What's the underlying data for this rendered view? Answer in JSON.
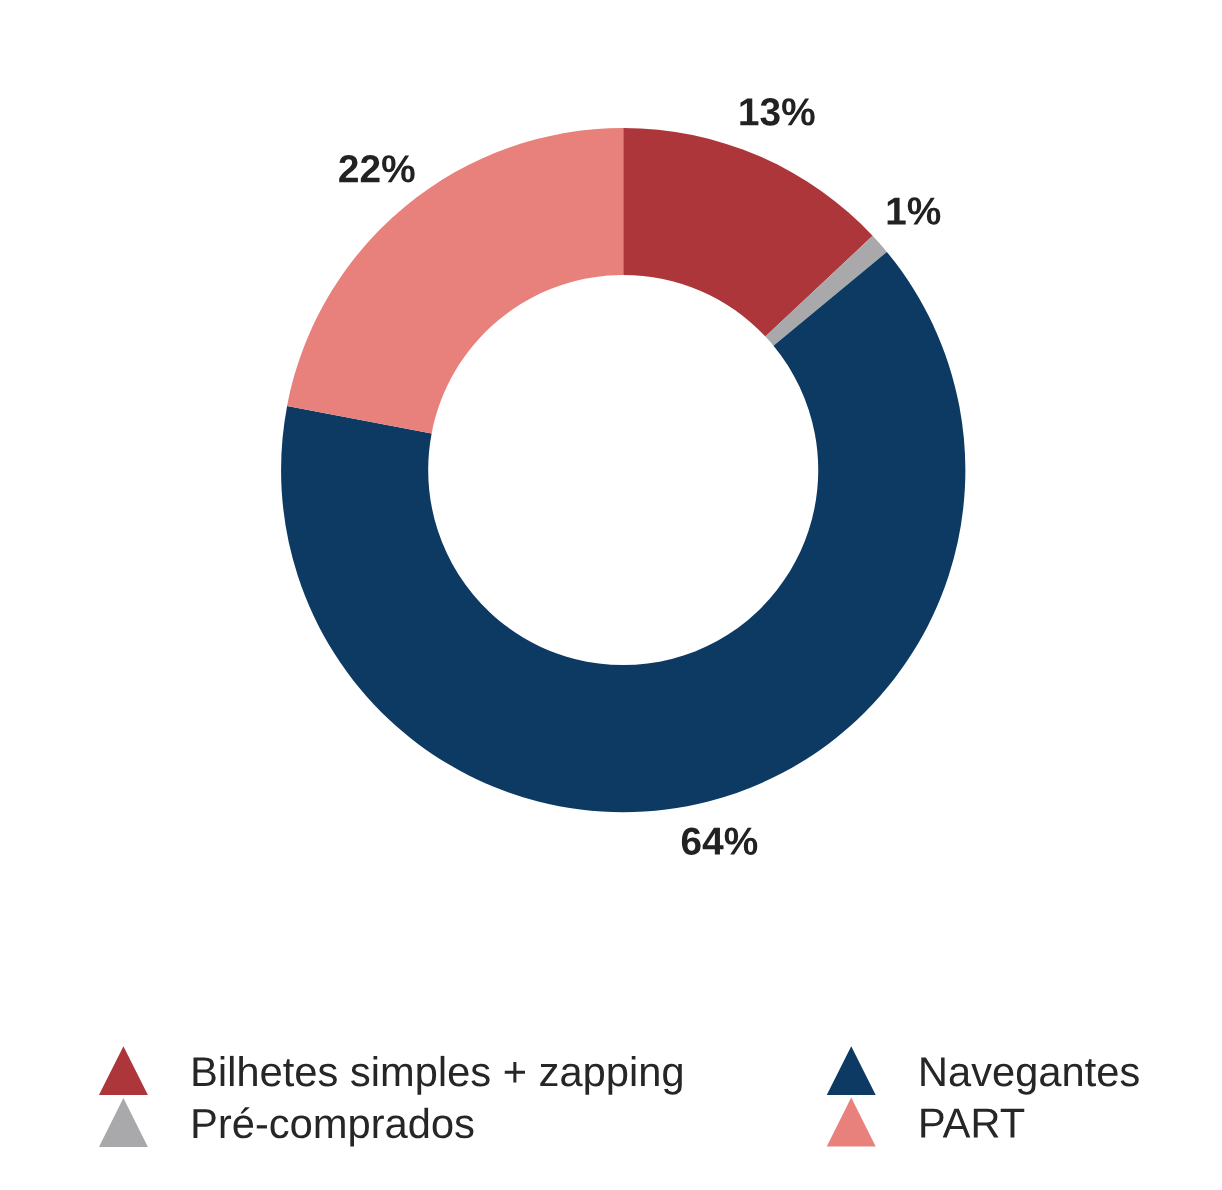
{
  "chart_data": {
    "type": "donut",
    "categories": [
      "Bilhetes simples + zapping",
      "Pré-comprados",
      "Navegantes",
      "PART"
    ],
    "values": [
      13,
      1,
      64,
      22
    ],
    "colors": [
      "#ad363b",
      "#a9a9ab",
      "#0d3a63",
      "#e8807c"
    ],
    "value_labels": [
      "13%",
      "1%",
      "64%",
      "22%"
    ],
    "legend": "bottom",
    "marker": "triangle"
  }
}
